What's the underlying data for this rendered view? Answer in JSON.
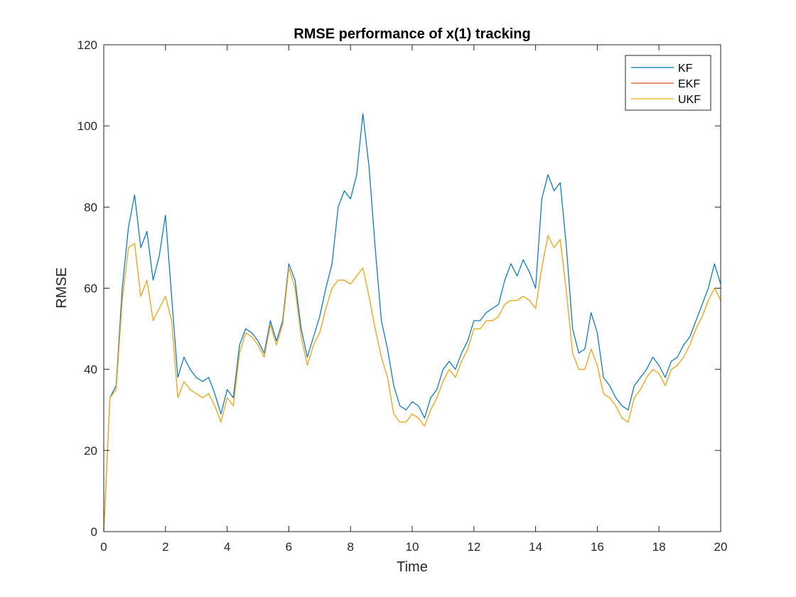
{
  "chart_data": {
    "type": "line",
    "title": "RMSE performance of x(1) tracking",
    "xlabel": "Time",
    "ylabel": "RMSE",
    "xlim": [
      0,
      20
    ],
    "ylim": [
      0,
      120
    ],
    "xticks": [
      0,
      2,
      4,
      6,
      8,
      10,
      12,
      14,
      16,
      18,
      20
    ],
    "yticks": [
      0,
      20,
      40,
      60,
      80,
      100,
      120
    ],
    "grid": false,
    "legend_position": "top-right",
    "x": [
      0,
      0.2,
      0.4,
      0.6,
      0.8,
      1.0,
      1.2,
      1.4,
      1.6,
      1.8,
      2.0,
      2.2,
      2.4,
      2.6,
      2.8,
      3.0,
      3.2,
      3.4,
      3.6,
      3.8,
      4.0,
      4.2,
      4.4,
      4.6,
      4.8,
      5.0,
      5.2,
      5.4,
      5.6,
      5.8,
      6.0,
      6.2,
      6.4,
      6.6,
      6.8,
      7.0,
      7.2,
      7.4,
      7.6,
      7.8,
      8.0,
      8.2,
      8.4,
      8.6,
      8.8,
      9.0,
      9.2,
      9.4,
      9.6,
      9.8,
      10.0,
      10.2,
      10.4,
      10.6,
      10.8,
      11.0,
      11.2,
      11.4,
      11.6,
      11.8,
      12.0,
      12.2,
      12.4,
      12.6,
      12.8,
      13.0,
      13.2,
      13.4,
      13.6,
      13.8,
      14.0,
      14.2,
      14.4,
      14.6,
      14.8,
      15.0,
      15.2,
      15.4,
      15.6,
      15.8,
      16.0,
      16.2,
      16.4,
      16.6,
      16.8,
      17.0,
      17.2,
      17.4,
      17.6,
      17.8,
      18.0,
      18.2,
      18.4,
      18.6,
      18.8,
      19.0,
      19.2,
      19.4,
      19.6,
      19.8,
      20.0
    ],
    "series": [
      {
        "name": "KF",
        "color": "#0072BD",
        "values": [
          0,
          33,
          36,
          60,
          75,
          83,
          70,
          74,
          62,
          68,
          78,
          58,
          38,
          43,
          40,
          38,
          37,
          38,
          34,
          29,
          35,
          33,
          46,
          50,
          49,
          47,
          44,
          52,
          47,
          52,
          66,
          62,
          50,
          43,
          48,
          53,
          60,
          66,
          80,
          84,
          82,
          88,
          103,
          90,
          70,
          52,
          45,
          36,
          31,
          30,
          32,
          31,
          28,
          33,
          35,
          40,
          42,
          40,
          44,
          47,
          52,
          52,
          54,
          55,
          56,
          62,
          66,
          63,
          67,
          64,
          60,
          82,
          88,
          84,
          86,
          70,
          50,
          44,
          45,
          54,
          49,
          38,
          36,
          33,
          31,
          30,
          36,
          38,
          40,
          43,
          41,
          38,
          42,
          43,
          46,
          48,
          52,
          56,
          60,
          66,
          61
        ]
      },
      {
        "name": "EKF",
        "color": "#D95319",
        "values": [
          0,
          33,
          35,
          57,
          70,
          71,
          58,
          62,
          52,
          55,
          58,
          52,
          33,
          37,
          35,
          34,
          33,
          34,
          31,
          27,
          33,
          31,
          44,
          49,
          48,
          46,
          43,
          51,
          46,
          51,
          65,
          60,
          48,
          41,
          46,
          49,
          55,
          60,
          62,
          62,
          61,
          63,
          65,
          58,
          50,
          43,
          38,
          29,
          27,
          27,
          29,
          28,
          26,
          30,
          33,
          37,
          40,
          38,
          42,
          45,
          50,
          50,
          52,
          52,
          53,
          56,
          57,
          57,
          58,
          57,
          55,
          65,
          73,
          70,
          72,
          59,
          44,
          40,
          40,
          45,
          41,
          34,
          33,
          31,
          28,
          27,
          33,
          35,
          38,
          40,
          39,
          36,
          40,
          41,
          43,
          46,
          50,
          53,
          57,
          60,
          57
        ]
      },
      {
        "name": "UKF",
        "color": "#EDB120",
        "values": [
          0,
          33,
          35,
          57,
          70,
          71,
          58,
          62,
          52,
          55,
          58,
          52,
          33,
          37,
          35,
          34,
          33,
          34,
          31,
          27,
          33,
          31,
          44,
          49,
          48,
          46,
          43,
          51,
          46,
          51,
          65,
          60,
          48,
          41,
          46,
          49,
          55,
          60,
          62,
          62,
          61,
          63,
          65,
          58,
          50,
          43,
          38,
          29,
          27,
          27,
          29,
          28,
          26,
          30,
          33,
          37,
          40,
          38,
          42,
          45,
          50,
          50,
          52,
          52,
          53,
          56,
          57,
          57,
          58,
          57,
          55,
          65,
          73,
          70,
          72,
          59,
          44,
          40,
          40,
          45,
          41,
          34,
          33,
          31,
          28,
          27,
          33,
          35,
          38,
          40,
          39,
          36,
          40,
          41,
          43,
          46,
          50,
          53,
          57,
          60,
          57
        ]
      }
    ]
  }
}
